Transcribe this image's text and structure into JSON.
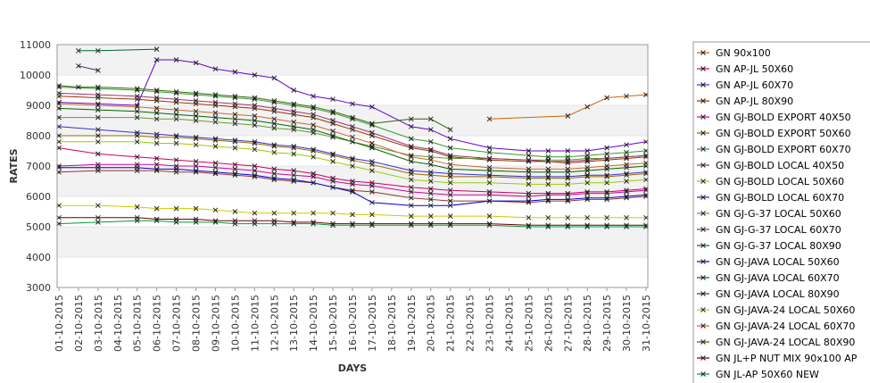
{
  "chart_data": {
    "type": "line",
    "xlabel": "DAYS",
    "ylabel": "RATES",
    "ylim": [
      3000,
      11000
    ],
    "yticks": [
      3000,
      4000,
      5000,
      6000,
      7000,
      8000,
      9000,
      10000,
      11000
    ],
    "grid": "alternating horizontal bands",
    "legend_position": "right",
    "x": [
      "01-10-2015",
      "02-10-2015",
      "03-10-2015",
      "04-10-2015",
      "05-10-2015",
      "06-10-2015",
      "07-10-2015",
      "08-10-2015",
      "09-10-2015",
      "10-10-2015",
      "11-10-2015",
      "12-10-2015",
      "13-10-2015",
      "14-10-2015",
      "15-10-2015",
      "16-10-2015",
      "17-10-2015",
      "18-10-2015",
      "19-10-2015",
      "20-10-2015",
      "21-10-2015",
      "22-10-2015",
      "23-10-2015",
      "24-10-2015",
      "25-10-2015",
      "26-10-2015",
      "27-10-2015",
      "28-10-2015",
      "29-10-2015",
      "30-10-2015",
      "31-10-2015"
    ],
    "series": [
      {
        "name": "GN 90x100",
        "color": "#cc6600",
        "values": [
          null,
          null,
          null,
          null,
          null,
          null,
          null,
          null,
          null,
          null,
          null,
          null,
          null,
          null,
          null,
          null,
          null,
          null,
          null,
          null,
          null,
          null,
          8550,
          null,
          null,
          null,
          8650,
          8950,
          9250,
          9300,
          9350
        ]
      },
      {
        "name": "GN AP-JL 50X60",
        "color": "#cc0066",
        "values": [
          7600,
          null,
          7400,
          null,
          7300,
          7250,
          7200,
          7150,
          7100,
          7050,
          7000,
          6900,
          6850,
          6750,
          6600,
          6500,
          6450,
          null,
          6300,
          6250,
          6200,
          null,
          6150,
          null,
          6100,
          6100,
          6100,
          6150,
          6150,
          6200,
          6250
        ]
      },
      {
        "name": "GN AP-JL 60X70",
        "color": "#3333cc",
        "values": [
          8300,
          null,
          8200,
          null,
          8100,
          8050,
          8000,
          7950,
          7900,
          7850,
          7800,
          7700,
          7650,
          7550,
          7400,
          7250,
          7150,
          null,
          6850,
          6800,
          6750,
          null,
          6700,
          null,
          6650,
          6650,
          6650,
          6700,
          6700,
          6750,
          6800
        ]
      },
      {
        "name": "GN AP-JL 80X90",
        "color": "#993300",
        "values": [
          9300,
          null,
          9250,
          null,
          9200,
          9150,
          9100,
          9050,
          9000,
          8950,
          8900,
          8800,
          8700,
          8600,
          8400,
          8200,
          8000,
          null,
          7600,
          7500,
          7300,
          null,
          7200,
          null,
          7150,
          7150,
          7100,
          7150,
          7200,
          7250,
          7300
        ]
      },
      {
        "name": "GN GJ-BOLD EXPORT 40X50",
        "color": "#cc0099",
        "values": [
          7000,
          null,
          7050,
          null,
          7050,
          7050,
          7000,
          7000,
          6950,
          6900,
          6850,
          6750,
          6700,
          6650,
          6500,
          6400,
          6350,
          null,
          6150,
          6100,
          6050,
          null,
          6050,
          null,
          6000,
          6050,
          6050,
          6100,
          6100,
          6150,
          6200
        ]
      },
      {
        "name": "GN GJ-BOLD EXPORT 50X60",
        "color": "#996600",
        "values": [
          8000,
          null,
          8000,
          null,
          8000,
          7950,
          7950,
          7900,
          7850,
          7800,
          7750,
          7650,
          7600,
          7500,
          7350,
          7200,
          7050,
          null,
          6750,
          6700,
          6650,
          null,
          6650,
          null,
          6600,
          6600,
          6600,
          6650,
          6650,
          6700,
          6750
        ]
      },
      {
        "name": "GN GJ-BOLD EXPORT 60X70",
        "color": "#339933",
        "values": [
          9600,
          null,
          9550,
          null,
          9500,
          9450,
          9400,
          9350,
          9300,
          9250,
          9200,
          9100,
          9000,
          8900,
          8750,
          8550,
          8350,
          null,
          7900,
          7800,
          7600,
          null,
          7450,
          null,
          7350,
          7300,
          7300,
          7350,
          7400,
          7450,
          7500
        ]
      },
      {
        "name": "GN GJ-BOLD LOCAL 40X50",
        "color": "#993333",
        "values": [
          6800,
          null,
          6850,
          null,
          6850,
          6850,
          6800,
          6800,
          6750,
          6700,
          6650,
          6550,
          6500,
          6450,
          6300,
          6200,
          6150,
          null,
          5950,
          5900,
          5850,
          null,
          5850,
          null,
          5800,
          5850,
          5850,
          5900,
          5900,
          5950,
          6000
        ]
      },
      {
        "name": "GN GJ-BOLD LOCAL 50X60",
        "color": "#99cc00",
        "values": [
          7800,
          null,
          7800,
          null,
          7800,
          7750,
          7750,
          7700,
          7650,
          7600,
          7550,
          7450,
          7400,
          7300,
          7150,
          7000,
          6850,
          null,
          6550,
          6500,
          6450,
          null,
          6450,
          null,
          6400,
          6400,
          6400,
          6450,
          6450,
          6500,
          6550
        ]
      },
      {
        "name": "GN GJ-BOLD LOCAL 60X70",
        "color": "#6600cc",
        "values": [
          9100,
          null,
          9050,
          null,
          9000,
          10500,
          10500,
          10400,
          10200,
          10100,
          10000,
          9900,
          9500,
          9300,
          9200,
          9050,
          8950,
          null,
          8300,
          8200,
          7900,
          null,
          7600,
          null,
          7500,
          7500,
          7500,
          7500,
          7600,
          7700,
          7800
        ]
      },
      {
        "name": "GN GJ-G-37 LOCAL 50X60",
        "color": "#669933",
        "values": [
          8600,
          null,
          8600,
          null,
          8600,
          8550,
          8550,
          8500,
          8450,
          8400,
          8350,
          8250,
          8200,
          8100,
          7950,
          7800,
          7650,
          null,
          7350,
          7300,
          7250,
          null,
          7250,
          null,
          7200,
          7200,
          7200,
          7250,
          7250,
          7300,
          7350
        ]
      },
      {
        "name": "GN GJ-G-37 LOCAL 60X70",
        "color": "#993366",
        "values": [
          9400,
          null,
          9350,
          null,
          9300,
          9250,
          9200,
          9150,
          9100,
          9050,
          9000,
          8900,
          8800,
          8700,
          8500,
          8300,
          8100,
          null,
          7650,
          7550,
          7350,
          null,
          7250,
          null,
          7200,
          7150,
          7150,
          7200,
          7250,
          7300,
          7350
        ]
      },
      {
        "name": "GN GJ-G-37 LOCAL 80X90",
        "color": "#006633",
        "values": [
          null,
          10800,
          10800,
          null,
          null,
          10850,
          null,
          null,
          null,
          null,
          null,
          null,
          null,
          null,
          null,
          null,
          null,
          null,
          null,
          null,
          null,
          null,
          null,
          null,
          null,
          null,
          null,
          null,
          null,
          null,
          null
        ]
      },
      {
        "name": "GN GJ-JAVA LOCAL 50X60",
        "color": "#0000cc",
        "values": [
          6950,
          null,
          6950,
          null,
          6950,
          6900,
          6900,
          6850,
          6800,
          6750,
          6700,
          6600,
          6550,
          6450,
          6300,
          6150,
          5800,
          null,
          5700,
          5700,
          5700,
          null,
          5850,
          null,
          5850,
          5900,
          5900,
          5950,
          5950,
          6000,
          6050
        ]
      },
      {
        "name": "GN GJ-JAVA LOCAL 60X70",
        "color": "#006600",
        "values": [
          8900,
          null,
          8850,
          null,
          8800,
          8750,
          8700,
          8650,
          8600,
          8550,
          8500,
          8400,
          8300,
          8200,
          8000,
          7800,
          7600,
          null,
          7150,
          7050,
          6900,
          null,
          6850,
          null,
          6800,
          6800,
          6800,
          6850,
          6900,
          6950,
          7000
        ]
      },
      {
        "name": "GN GJ-JAVA LOCAL 80X90",
        "color": "#333366",
        "values": [
          null,
          10300,
          10150,
          null,
          null,
          null,
          null,
          null,
          null,
          null,
          null,
          null,
          null,
          null,
          null,
          null,
          null,
          null,
          null,
          null,
          null,
          null,
          null,
          null,
          null,
          null,
          null,
          null,
          null,
          null,
          null
        ]
      },
      {
        "name": "GN GJ-JAVA-24 LOCAL 50X60",
        "color": "#cccc00",
        "values": [
          5700,
          null,
          5700,
          null,
          5650,
          5600,
          5600,
          5600,
          5550,
          5500,
          5450,
          5450,
          5450,
          5450,
          5450,
          5400,
          5400,
          null,
          5350,
          5350,
          5350,
          null,
          5350,
          null,
          5300,
          5300,
          5300,
          5300,
          5300,
          5300,
          5300
        ]
      },
      {
        "name": "GN GJ-JAVA-24 LOCAL 60X70",
        "color": "#cc6633",
        "values": [
          9050,
          null,
          9000,
          null,
          8950,
          8900,
          8850,
          8800,
          8750,
          8700,
          8650,
          8550,
          8450,
          8350,
          8150,
          7950,
          7750,
          null,
          7300,
          7200,
          7050,
          null,
          6950,
          null,
          6900,
          6900,
          6900,
          6950,
          7000,
          7050,
          7100
        ]
      },
      {
        "name": "GN GJ-JAVA-24 LOCAL 80X90",
        "color": "#336600",
        "values": [
          9650,
          9600,
          9600,
          null,
          9550,
          9500,
          9450,
          9400,
          9350,
          9300,
          9250,
          9150,
          9050,
          8950,
          8800,
          8600,
          8400,
          null,
          8550,
          8550,
          8200,
          null,
          null,
          null,
          null,
          null,
          null,
          null,
          null,
          null,
          null
        ]
      },
      {
        "name": "GN JL+P NUT MIX 90x100 AP",
        "color": "#660000",
        "values": [
          5300,
          null,
          5300,
          null,
          5300,
          5250,
          5250,
          5250,
          5200,
          5200,
          5200,
          5200,
          5150,
          5150,
          5100,
          5100,
          5100,
          null,
          5100,
          5100,
          5100,
          null,
          5100,
          null,
          5050,
          5050,
          5050,
          5050,
          5050,
          5050,
          5050
        ]
      },
      {
        "name": "GN JL-AP 50X60 NEW",
        "color": "#009933",
        "values": [
          5100,
          null,
          5150,
          null,
          5200,
          5200,
          5150,
          5150,
          5150,
          5100,
          5100,
          5100,
          5100,
          5100,
          5050,
          5050,
          5050,
          null,
          5050,
          5050,
          5050,
          null,
          5050,
          null,
          5000,
          5000,
          5000,
          5000,
          5000,
          5000,
          5000
        ]
      }
    ]
  }
}
